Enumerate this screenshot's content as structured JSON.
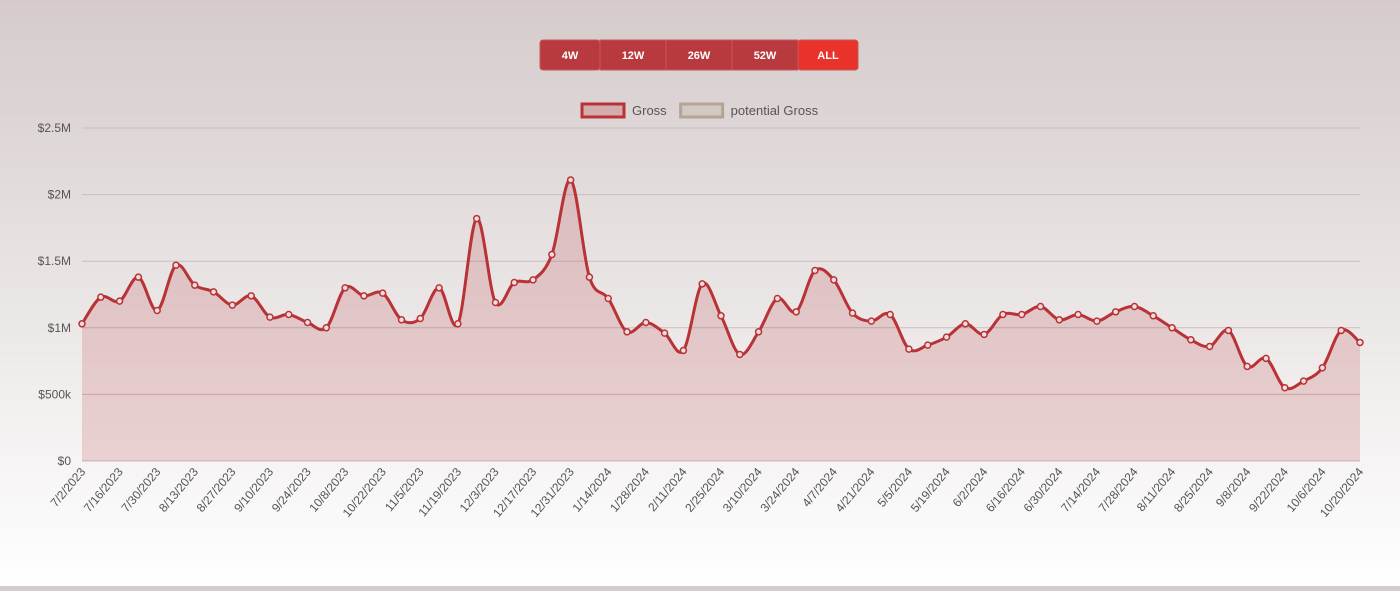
{
  "buttons": [
    "4W",
    "12W",
    "26W",
    "52W",
    "ALL"
  ],
  "active_button": "ALL",
  "chart_data": {
    "type": "line",
    "smooth": true,
    "area": true,
    "grid": true,
    "legend": "top",
    "categories": [
      "7/2/2023",
      null,
      "7/16/2023",
      null,
      "7/30/2023",
      null,
      "8/13/2023",
      null,
      "8/27/2023",
      null,
      "9/10/2023",
      null,
      "9/24/2023",
      null,
      "10/8/2023",
      null,
      "10/22/2023",
      null,
      "11/5/2023",
      null,
      "11/19/2023",
      null,
      "12/3/2023",
      null,
      "12/17/2023",
      null,
      "12/31/2023",
      null,
      "1/14/2024",
      null,
      "1/28/2024",
      null,
      "2/11/2024",
      null,
      "2/25/2024",
      null,
      "3/10/2024",
      null,
      "3/24/2024",
      null,
      "4/7/2024",
      null,
      "4/21/2024",
      null,
      "5/5/2024",
      null,
      "5/19/2024",
      null,
      "6/2/2024",
      null,
      "6/16/2024",
      null,
      "6/30/2024",
      null,
      "7/14/2024",
      null,
      "7/28/2024",
      null,
      "8/11/2024",
      null,
      "8/25/2024",
      null,
      "9/8/2024",
      null,
      "9/22/2024",
      null,
      "10/6/2024",
      null,
      "10/20/2024"
    ],
    "series": [
      {
        "name": "Gross",
        "color": "#b83236",
        "values": [
          1030000,
          1230000,
          1200000,
          1380000,
          1130000,
          1470000,
          1320000,
          1270000,
          1170000,
          1240000,
          1080000,
          1100000,
          1040000,
          1000000,
          1300000,
          1240000,
          1260000,
          1060000,
          1070000,
          1300000,
          1030000,
          1820000,
          1190000,
          1340000,
          1360000,
          1550000,
          2110000,
          1380000,
          1220000,
          970000,
          1040000,
          960000,
          830000,
          1330000,
          1090000,
          800000,
          970000,
          1220000,
          1120000,
          1430000,
          1360000,
          1110000,
          1050000,
          1100000,
          840000,
          870000,
          930000,
          1030000,
          950000,
          1100000,
          1100000,
          1160000,
          1060000,
          1100000,
          1050000,
          1120000,
          1160000,
          1090000,
          1000000,
          910000,
          860000,
          980000,
          710000,
          770000,
          550000,
          600000,
          700000,
          980000,
          890000
        ]
      },
      {
        "name": "potential Gross",
        "color": "#b3a494",
        "values": [
          null,
          null,
          null,
          null,
          null,
          null,
          null,
          null,
          null,
          null,
          null,
          null,
          null,
          null,
          null,
          null,
          null,
          null,
          null,
          null,
          null,
          null,
          null,
          null,
          null,
          null,
          null,
          null,
          null,
          null,
          null,
          null,
          null,
          null,
          null,
          null,
          null,
          null,
          null,
          null,
          null,
          null,
          null,
          null,
          null,
          null,
          null,
          null,
          null,
          null,
          null,
          null,
          null,
          null,
          null,
          null,
          null,
          null,
          null,
          null,
          null,
          null,
          null,
          null,
          null,
          null,
          null,
          null,
          null
        ]
      }
    ],
    "ylim": [
      0,
      2500000
    ],
    "yticks": [
      {
        "value": 0,
        "label": "$0"
      },
      {
        "value": 500000,
        "label": "$500k"
      },
      {
        "value": 1000000,
        "label": "$1M"
      },
      {
        "value": 1500000,
        "label": "$1.5M"
      },
      {
        "value": 2000000,
        "label": "$2M"
      },
      {
        "value": 2500000,
        "label": "$2.5M"
      }
    ]
  }
}
